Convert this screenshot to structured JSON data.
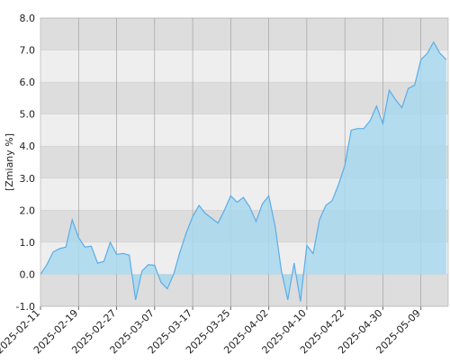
{
  "chart_data": {
    "type": "area",
    "y_label": "[Zmiany %]",
    "x": [
      "2025-02-11",
      "2025-02-12",
      "2025-02-13",
      "2025-02-14",
      "2025-02-17",
      "2025-02-18",
      "2025-02-19",
      "2025-02-20",
      "2025-02-21",
      "2025-02-24",
      "2025-02-25",
      "2025-02-26",
      "2025-02-27",
      "2025-02-28",
      "2025-03-03",
      "2025-03-04",
      "2025-03-05",
      "2025-03-06",
      "2025-03-07",
      "2025-03-10",
      "2025-03-11",
      "2025-03-12",
      "2025-03-13",
      "2025-03-14",
      "2025-03-17",
      "2025-03-18",
      "2025-03-19",
      "2025-03-20",
      "2025-03-21",
      "2025-03-24",
      "2025-03-25",
      "2025-03-26",
      "2025-03-27",
      "2025-03-28",
      "2025-03-31",
      "2025-04-01",
      "2025-04-02",
      "2025-04-03",
      "2025-04-04",
      "2025-04-07",
      "2025-04-08",
      "2025-04-09",
      "2025-04-10",
      "2025-04-11",
      "2025-04-14",
      "2025-04-15",
      "2025-04-16",
      "2025-04-17",
      "2025-04-22",
      "2025-04-23",
      "2025-04-24",
      "2025-04-25",
      "2025-04-28",
      "2025-04-29",
      "2025-04-30",
      "2025-05-02",
      "2025-05-05",
      "2025-05-06",
      "2025-05-07",
      "2025-05-08",
      "2025-05-09",
      "2025-05-12",
      "2025-05-13",
      "2025-05-14",
      "2025-05-15"
    ],
    "series": [
      {
        "color": "#5aaee8",
        "values": [
          0.0,
          0.3,
          0.7,
          0.8,
          0.85,
          1.7,
          1.15,
          0.85,
          0.88,
          0.35,
          0.4,
          1.0,
          0.62,
          0.65,
          0.6,
          -0.8,
          0.1,
          0.3,
          0.28,
          -0.25,
          -0.45,
          0.0,
          0.7,
          1.3,
          1.8,
          2.15,
          1.9,
          1.75,
          1.6,
          2.0,
          2.45,
          2.25,
          2.4,
          2.1,
          1.65,
          2.2,
          2.45,
          1.5,
          0.1,
          -0.8,
          0.35,
          -0.85,
          0.9,
          0.65,
          1.7,
          2.15,
          2.3,
          2.8,
          3.4,
          4.5,
          4.55,
          4.55,
          4.8,
          5.25,
          4.7,
          5.75,
          5.45,
          5.2,
          5.8,
          5.9,
          6.7,
          6.9,
          7.25,
          6.9,
          6.7
        ]
      }
    ],
    "xticks": [
      "2025-02-11",
      "2025-02-19",
      "2025-02-27",
      "2025-03-07",
      "2025-03-17",
      "2025-03-25",
      "2025-04-02",
      "2025-04-10",
      "2025-04-22",
      "2025-04-30",
      "2025-05-09"
    ],
    "ylim": [
      -1,
      8
    ],
    "yticks": [
      {
        "value": -1,
        "label": "-1.0"
      },
      {
        "value": 0,
        "label": "0.0"
      },
      {
        "value": 1,
        "label": "1.0"
      },
      {
        "value": 2,
        "label": "2.0"
      },
      {
        "value": 3,
        "label": "3.0"
      },
      {
        "value": 4,
        "label": "4.0"
      },
      {
        "value": 5,
        "label": "5.0"
      },
      {
        "value": 6,
        "label": "6.0"
      },
      {
        "value": 7,
        "label": "7.0"
      },
      {
        "value": 8,
        "label": "8.0"
      }
    ],
    "grid": true
  }
}
